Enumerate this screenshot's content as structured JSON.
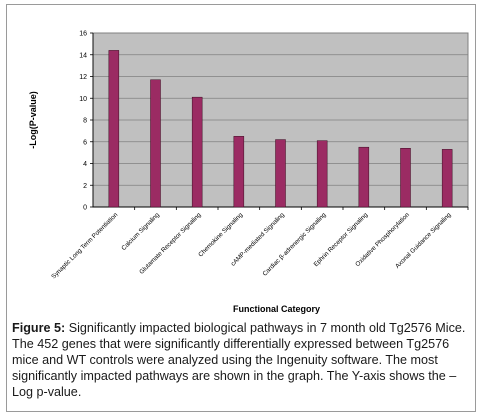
{
  "chart_data": {
    "type": "bar",
    "title": "",
    "xlabel": "Functional Category",
    "ylabel": "-Log(P-value)",
    "ylim": [
      0,
      16
    ],
    "yticks": [
      "0",
      "2",
      "4",
      "6",
      "8",
      "10",
      "12",
      "14",
      "16"
    ],
    "grid": true,
    "categories": [
      "Synaptic Long Term Potentiation",
      "Calcium Signaling",
      "Glutamate Receptor Signaling",
      "Chemokine Signaling",
      "cAMP-mediated Signaling",
      "Cardiac β-adrenergic Signaling",
      "Ephrin Receptor Signaling",
      "Oxidative Phosphorylation",
      "Axonal Guidance Signaling"
    ],
    "values": [
      14.4,
      11.7,
      10.1,
      6.5,
      6.2,
      6.1,
      5.5,
      5.4,
      5.3
    ],
    "colors": {
      "bar": "#9b2b63",
      "plot_bg": "#c0c0c0",
      "grid": "#808080"
    }
  },
  "caption": {
    "label": "Figure 5:",
    "text": "Significantly impacted biological pathways in 7 month old Tg2576 Mice. The 452 genes that were significantly differentially expressed between Tg2576 mice and WT controls were analyzed using the Ingenuity software. The most significantly impacted pathways are shown in the graph. The Y-axis shows the –Log p-value."
  }
}
